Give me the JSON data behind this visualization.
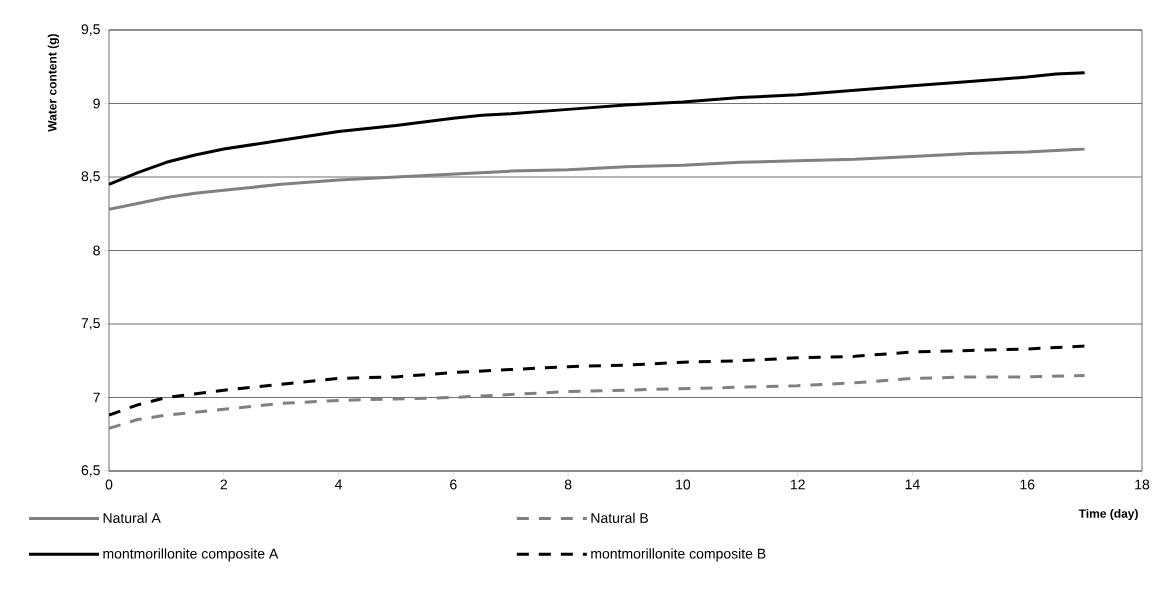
{
  "chart_data": {
    "type": "line",
    "xlabel": "Time (day)",
    "ylabel": "Water content (g)",
    "xlim": [
      0,
      18
    ],
    "xticks": [
      0,
      2,
      4,
      6,
      8,
      10,
      12,
      14,
      16,
      18
    ],
    "ylim": [
      6.5,
      9.5
    ],
    "yticks": [
      {
        "value": 6.5,
        "label": "6,5"
      },
      7,
      {
        "value": 7.5,
        "label": "7,5"
      },
      8,
      {
        "value": 8.5,
        "label": "8,5"
      },
      9,
      {
        "value": 9.5,
        "label": "9,5"
      }
    ],
    "grid": "y",
    "legend": "bottom",
    "marker": "none",
    "series": [
      {
        "name": "Natural A",
        "color": "#808080",
        "line_style": "solid",
        "x": [
          0,
          0.5,
          1,
          1.5,
          2,
          3,
          4,
          5,
          6,
          7,
          8,
          9,
          10,
          11,
          12,
          13,
          14,
          15,
          16,
          17
        ],
        "values": [
          8.28,
          8.32,
          8.36,
          8.39,
          8.41,
          8.45,
          8.48,
          8.5,
          8.52,
          8.54,
          8.55,
          8.57,
          8.58,
          8.6,
          8.61,
          8.62,
          8.64,
          8.66,
          8.67,
          8.69
        ]
      },
      {
        "name": "Natural B",
        "color": "#808080",
        "line_style": "dashed",
        "x": [
          0,
          0.5,
          1,
          2,
          3,
          4,
          5,
          6,
          7,
          8,
          9,
          10,
          11,
          12,
          13,
          14,
          15,
          16,
          17
        ],
        "values": [
          6.79,
          6.85,
          6.88,
          6.92,
          6.96,
          6.98,
          6.99,
          7.0,
          7.02,
          7.04,
          7.05,
          7.06,
          7.07,
          7.08,
          7.1,
          7.13,
          7.14,
          7.14,
          7.15
        ]
      },
      {
        "name": "montmorillonite composite A",
        "color": "#000000",
        "line_style": "solid",
        "x": [
          0,
          0.5,
          1,
          1.5,
          2,
          3,
          4,
          5,
          6,
          6.5,
          7,
          8,
          9,
          10,
          11,
          12,
          13,
          14,
          15,
          16,
          16.5,
          17
        ],
        "values": [
          8.45,
          8.53,
          8.6,
          8.65,
          8.69,
          8.75,
          8.81,
          8.85,
          8.9,
          8.92,
          8.93,
          8.96,
          8.99,
          9.01,
          9.04,
          9.06,
          9.09,
          9.12,
          9.15,
          9.18,
          9.2,
          9.21
        ]
      },
      {
        "name": "montmorillonite composite B",
        "color": "#000000",
        "line_style": "dashed",
        "x": [
          0,
          0.5,
          1,
          2,
          3,
          4,
          5,
          6,
          7,
          8,
          9,
          10,
          11,
          12,
          13,
          14,
          15,
          16,
          17
        ],
        "values": [
          6.88,
          6.95,
          7.0,
          7.05,
          7.09,
          7.13,
          7.14,
          7.17,
          7.19,
          7.21,
          7.22,
          7.24,
          7.25,
          7.27,
          7.28,
          7.31,
          7.32,
          7.33,
          7.35
        ]
      }
    ]
  }
}
